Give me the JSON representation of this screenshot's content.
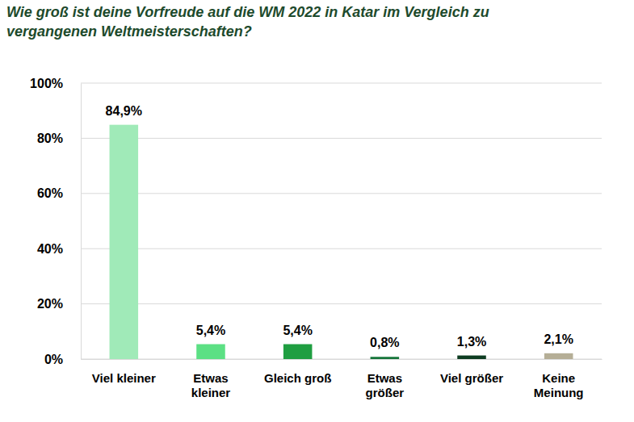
{
  "chart_data": {
    "type": "bar",
    "title": "Wie groß ist deine Vorfreude auf die WM 2022 in Katar im Vergleich zu vergangenen Weltmeisterschaften?",
    "categories": [
      "Viel kleiner",
      "Etwas kleiner",
      "Gleich groß",
      "Etwas größer",
      "Viel größer",
      "Keine Meinung"
    ],
    "values": [
      84.9,
      5.4,
      5.4,
      0.8,
      1.3,
      2.1
    ],
    "value_labels": [
      "84,9%",
      "5,4%",
      "5,4%",
      "0,8%",
      "1,3%",
      "2,1%"
    ],
    "colors": [
      "#a0eab8",
      "#5ce084",
      "#1f9e41",
      "#15753a",
      "#0e3d22",
      "#b5ae96"
    ],
    "ylim": [
      0,
      100
    ],
    "yticks": [
      {
        "value": 0,
        "label": "0%"
      },
      {
        "value": 20,
        "label": "20%"
      },
      {
        "value": 40,
        "label": "40%"
      },
      {
        "value": 60,
        "label": "60%"
      },
      {
        "value": 80,
        "label": "80%"
      },
      {
        "value": 100,
        "label": "100%"
      }
    ],
    "grid": true,
    "data_labels": true
  }
}
